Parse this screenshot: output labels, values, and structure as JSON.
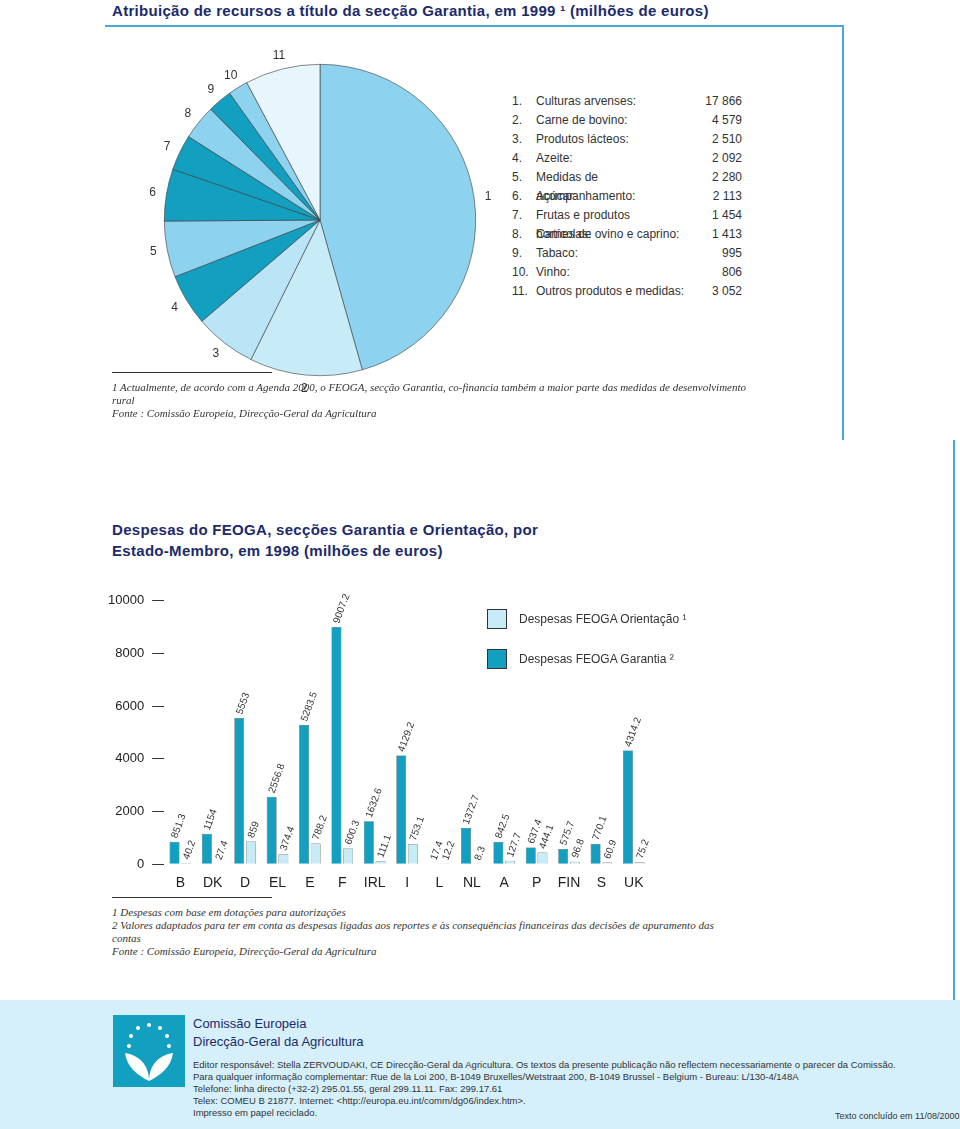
{
  "chart_data": [
    {
      "type": "pie",
      "title": "Atribuição de recursos a título da secção Garantia, em 1999 ¹ (milhões de euros)",
      "slice_labels": [
        "1",
        "2",
        "3",
        "4",
        "5",
        "6",
        "7",
        "8",
        "9",
        "10",
        "11"
      ],
      "legend_keys": [
        "1.",
        "2.",
        "3.",
        "4.",
        "5.",
        "6.",
        "7.",
        "8.",
        "9.",
        "10.",
        "11."
      ],
      "categories": [
        "Culturas arvenses:",
        "Carne de bovino:",
        "Produtos lácteos:",
        "Azeite:",
        "Medidas de acompanhamento:",
        "Açúcar:",
        "Frutas e produtos hortícolas:",
        "Carnes de ovino e caprino:",
        "Tabaco:",
        "Vinho:",
        "Outros produtos e medidas:"
      ],
      "values": [
        17866,
        4579,
        2510,
        2092,
        2280,
        2113,
        1454,
        1413,
        995,
        806,
        3052
      ],
      "value_labels": [
        "17 866",
        "4 579",
        "2 510",
        "2 092",
        "2 280",
        "2 113",
        "1 454",
        "1 413",
        "995",
        "806",
        "3 052"
      ],
      "colors": [
        "#8dd3f0",
        "#c8ebf8",
        "#b9e5f6",
        "#129fc0",
        "#8dd3f0",
        "#129fc0",
        "#129fc0",
        "#8dd3f0",
        "#129fc0",
        "#8dd3f0",
        "#e6f6fc"
      ],
      "notes": [
        "1 Actualmente, de acordo com a Agenda 2000, o FEOGA, secção Garantia, co-financia também a maior parte das medidas de desenvolvimento rural",
        "Fonte : Comissão Europeia, Direcção-Geral da Agricultura"
      ]
    },
    {
      "type": "bar",
      "title": "Despesas do FEOGA, secções Garantia e Orientação, por Estado-Membro, em 1998 (milhões de euros)",
      "categories": [
        "B",
        "DK",
        "D",
        "EL",
        "E",
        "F",
        "IRL",
        "I",
        "L",
        "NL",
        "A",
        "P",
        "FIN",
        "S",
        "UK"
      ],
      "series": [
        {
          "name": "Despesas FEOGA Garantia ²",
          "color": "#129fc0",
          "values": [
            851.3,
            1154,
            5553,
            2556.8,
            5283.5,
            9007.2,
            1632.6,
            4129.2,
            17.4,
            1372.7,
            842.5,
            637.4,
            575.7,
            770.1,
            4314.2
          ]
        },
        {
          "name": "Despesas FEOGA Orientação ¹",
          "color": "#c8ebf8",
          "values": [
            40.2,
            27.4,
            859,
            374.4,
            788.2,
            600.3,
            111.1,
            753.1,
            12.2,
            8.3,
            127.7,
            444.1,
            96.8,
            60.9,
            75.2
          ]
        }
      ],
      "ylim": [
        0,
        10000
      ],
      "yticks": [
        0,
        2000,
        4000,
        6000,
        8000,
        10000
      ],
      "grid": false,
      "legend": "upper right",
      "data_labels": true,
      "notes": [
        "1 Despesas com base em dotações para autorizações",
        "2 Valores adaptados para ter em conta as despesas ligadas aos reportes e às consequências financeiras das decisões de apuramento das contas",
        "Fonte : Comissão Europeia, Direcção-Geral da Agricultura"
      ]
    }
  ],
  "footer": {
    "organisation": "Comissão Europeia",
    "department": "Direcção-Geral da Agricultura",
    "lines": [
      "Editor responsável: Stella ZERVOUDAKI, CE Direcção-Geral da Agricultura. Os textos da presente publicação não reflectem necessariamente o parecer da Comissão.",
      "Para qualquer informação complementar: Rue de la Loi 200, B-1049 Bruxelles/Wetstraat 200, B-1049 Brussel - Belgium - Bureau: L/130-4/148A",
      "Telefone: linha directo (+32-2) 295.01.55, geral 299.11.11. Fax: 299.17.61",
      "Telex: COMEU B 21877. Internet: <http://europa.eu.int/comm/dg06/index.htm>.",
      "Impresso em papel reciclado."
    ],
    "date": "Texto concluído em 11/08/2000"
  }
}
